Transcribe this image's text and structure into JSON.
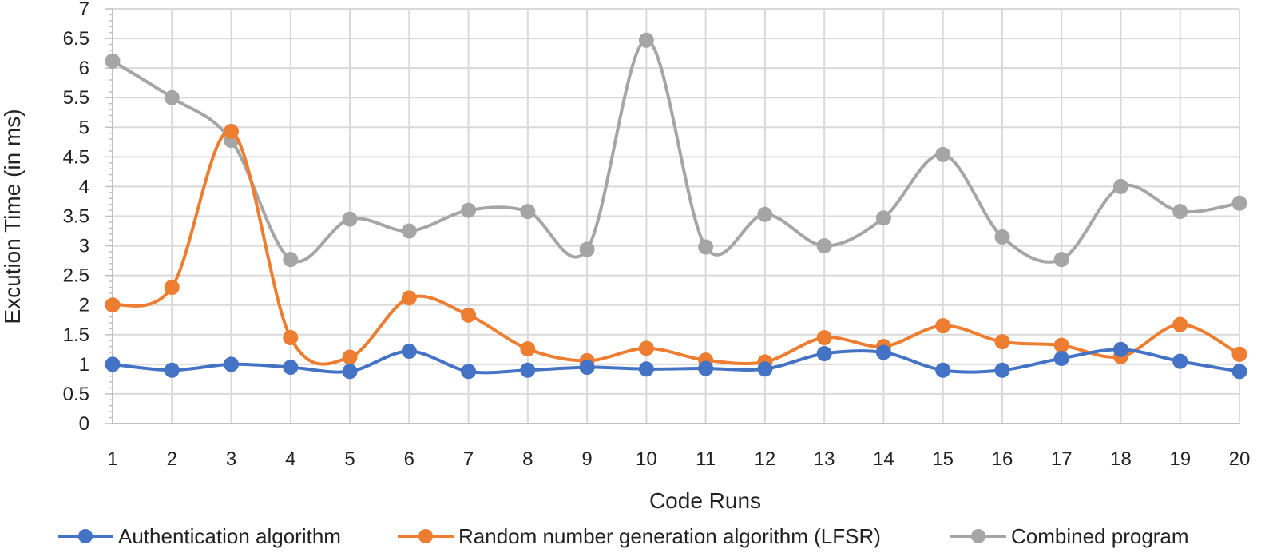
{
  "chart_data": {
    "type": "line",
    "title": "",
    "xlabel": "Code Runs",
    "ylabel": "Excution Time (in ms)",
    "ylim": [
      0,
      7
    ],
    "y_ticks": [
      "0",
      "0.5",
      "1",
      "1.5",
      "2",
      "2.5",
      "3",
      "3.5",
      "4",
      "4.5",
      "5",
      "5.5",
      "6",
      "6.5",
      "7"
    ],
    "grid": true,
    "legend_position": "bottom",
    "x": [
      1,
      2,
      3,
      4,
      5,
      6,
      7,
      8,
      9,
      10,
      11,
      12,
      13,
      14,
      15,
      16,
      17,
      18,
      19,
      20
    ],
    "x_labels": [
      "1",
      "2",
      "3",
      "4",
      "5",
      "6",
      "7",
      "8",
      "9",
      "10",
      "11",
      "12",
      "13",
      "14",
      "15",
      "16",
      "17",
      "18",
      "19",
      "20"
    ],
    "series": [
      {
        "name": "Authentication algorithm",
        "color": "#4472C4",
        "values": [
          1.0,
          0.9,
          1.0,
          0.95,
          0.88,
          1.22,
          0.88,
          0.9,
          0.95,
          0.92,
          0.93,
          0.92,
          1.18,
          1.2,
          0.9,
          0.9,
          1.1,
          1.25,
          1.05,
          0.88
        ]
      },
      {
        "name": "Random number generation algorithm (LFSR)",
        "color": "#ED7D31",
        "values": [
          2.0,
          2.3,
          4.93,
          1.45,
          1.12,
          2.12,
          1.83,
          1.26,
          1.06,
          1.27,
          1.07,
          1.04,
          1.45,
          1.3,
          1.65,
          1.38,
          1.32,
          1.13,
          1.67,
          1.17
        ]
      },
      {
        "name": "Combined program",
        "color": "#A5A5A5",
        "values": [
          6.12,
          5.5,
          4.78,
          2.77,
          3.45,
          3.25,
          3.6,
          3.58,
          2.94,
          6.47,
          2.98,
          3.53,
          3.0,
          3.47,
          4.54,
          3.15,
          2.77,
          4.0,
          3.58,
          3.72
        ]
      }
    ]
  }
}
